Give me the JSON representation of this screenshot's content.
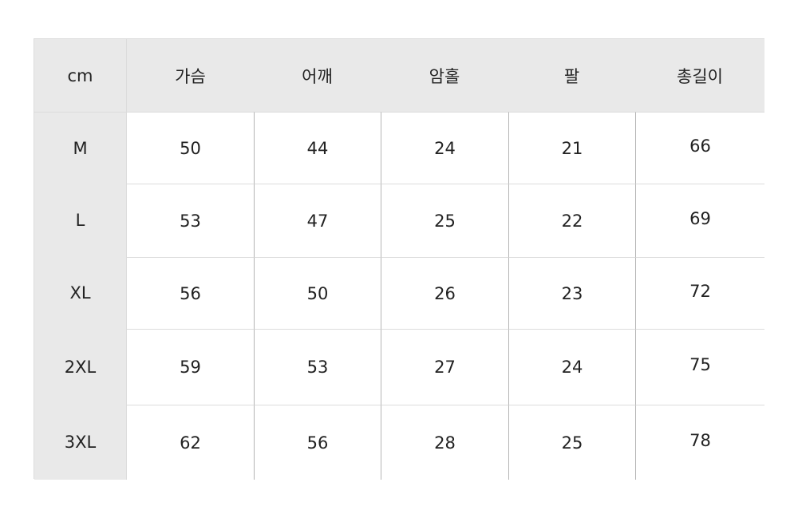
{
  "table": {
    "corner": "cm",
    "columns": [
      "가슴",
      "어깨",
      "암홀",
      "팔",
      "총길이"
    ],
    "rows": [
      {
        "size": "M",
        "values": [
          "50",
          "44",
          "24",
          "21",
          "66"
        ]
      },
      {
        "size": "L",
        "values": [
          "53",
          "47",
          "25",
          "22",
          "69"
        ]
      },
      {
        "size": "XL",
        "values": [
          "56",
          "50",
          "26",
          "23",
          "72"
        ]
      },
      {
        "size": "2XL",
        "values": [
          "59",
          "53",
          "27",
          "24",
          "75"
        ]
      },
      {
        "size": "3XL",
        "values": [
          "62",
          "56",
          "28",
          "25",
          "78"
        ]
      }
    ]
  },
  "colors": {
    "header_bg": "#e9e9e9",
    "body_bg": "#ffffff",
    "text": "#222222"
  }
}
